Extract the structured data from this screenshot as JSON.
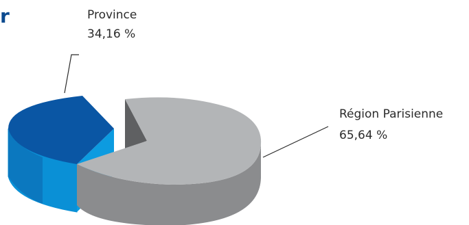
{
  "chart_data": {
    "type": "pie",
    "title_fragment": "r",
    "slices": [
      {
        "name": "Province",
        "value": 34.16,
        "label_value": "34,16 %",
        "color": "#0a56a4",
        "side_color": "#0a90d6"
      },
      {
        "name": "Région Parisienne",
        "value": 65.64,
        "label_value": "65,64 %",
        "color": "#b3b5b7",
        "side_color": "#8b8c8e"
      }
    ]
  }
}
